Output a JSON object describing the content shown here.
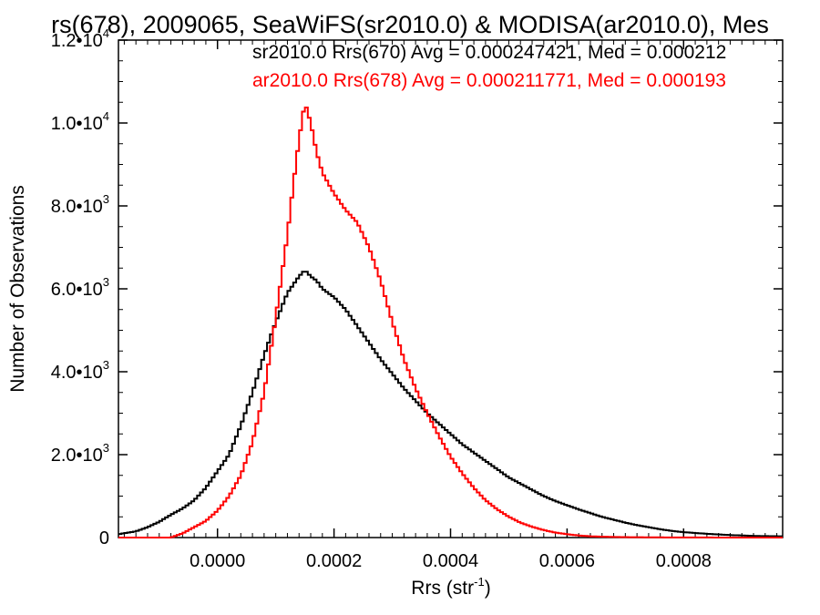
{
  "chart_data": {
    "type": "histogram",
    "title": "rs(678), 2009065, SeaWiFS(sr2010.0) & MODISA(ar2010.0), Mes",
    "xlabel": "Rrs (str",
    "xlabel_sup": "-1",
    "xlabel_close": ")",
    "ylabel": "Number of Observations",
    "xlim": [
      -0.00017,
      0.00097
    ],
    "ylim": [
      0,
      12000
    ],
    "x_ticks": [
      {
        "value": 0.0,
        "label": "0.0000"
      },
      {
        "value": 0.0002,
        "label": "0.0002"
      },
      {
        "value": 0.0004,
        "label": "0.0004"
      },
      {
        "value": 0.0006,
        "label": "0.0006"
      },
      {
        "value": 0.0008,
        "label": "0.0008"
      }
    ],
    "y_ticks": [
      {
        "value": 0,
        "label": "0",
        "exp": ""
      },
      {
        "value": 2000,
        "label": "2.0•10",
        "exp": "3"
      },
      {
        "value": 4000,
        "label": "4.0•10",
        "exp": "3"
      },
      {
        "value": 6000,
        "label": "6.0•10",
        "exp": "3"
      },
      {
        "value": 8000,
        "label": "8.0•10",
        "exp": "3"
      },
      {
        "value": 10000,
        "label": "1.0•10",
        "exp": "4"
      },
      {
        "value": 12000,
        "label": "1.2•10",
        "exp": "4"
      }
    ],
    "legend_position": "top-right",
    "grid": false,
    "series": [
      {
        "name": "sr2010.0 Rrs(670) Avg = 0.000247421, Med = 0.000212",
        "color": "#000000",
        "points": [
          [
            -0.00017,
            80
          ],
          [
            -0.00014,
            150
          ],
          [
            -0.00012,
            250
          ],
          [
            -0.0001,
            380
          ],
          [
            -8e-05,
            550
          ],
          [
            -6e-05,
            700
          ],
          [
            -4e-05,
            900
          ],
          [
            -2e-05,
            1200
          ],
          [
            0.0,
            1600
          ],
          [
            2e-05,
            2000
          ],
          [
            4e-05,
            2700
          ],
          [
            6e-05,
            3500
          ],
          [
            8e-05,
            4400
          ],
          [
            0.0001,
            5200
          ],
          [
            0.00012,
            5900
          ],
          [
            0.00014,
            6300
          ],
          [
            0.00015,
            6450
          ],
          [
            0.00016,
            6300
          ],
          [
            0.00017,
            6200
          ],
          [
            0.00018,
            6000
          ],
          [
            0.0002,
            5800
          ],
          [
            0.00022,
            5500
          ],
          [
            0.00024,
            5100
          ],
          [
            0.00026,
            4700
          ],
          [
            0.00028,
            4300
          ],
          [
            0.0003,
            3950
          ],
          [
            0.00032,
            3600
          ],
          [
            0.00034,
            3300
          ],
          [
            0.00036,
            3000
          ],
          [
            0.00038,
            2750
          ],
          [
            0.0004,
            2500
          ],
          [
            0.00042,
            2250
          ],
          [
            0.00044,
            2050
          ],
          [
            0.00046,
            1850
          ],
          [
            0.00048,
            1650
          ],
          [
            0.0005,
            1450
          ],
          [
            0.00052,
            1300
          ],
          [
            0.00054,
            1150
          ],
          [
            0.00056,
            1000
          ],
          [
            0.00058,
            880
          ],
          [
            0.0006,
            780
          ],
          [
            0.00062,
            680
          ],
          [
            0.00064,
            590
          ],
          [
            0.00066,
            500
          ],
          [
            0.00068,
            430
          ],
          [
            0.0007,
            360
          ],
          [
            0.00072,
            300
          ],
          [
            0.00074,
            250
          ],
          [
            0.00076,
            200
          ],
          [
            0.00078,
            160
          ],
          [
            0.0008,
            130
          ],
          [
            0.00082,
            110
          ],
          [
            0.00084,
            90
          ],
          [
            0.00086,
            75
          ],
          [
            0.00088,
            60
          ],
          [
            0.0009,
            50
          ],
          [
            0.00092,
            40
          ],
          [
            0.00094,
            35
          ],
          [
            0.00097,
            30
          ]
        ]
      },
      {
        "name": "ar2010.0 Rrs(678) Avg = 0.000211771, Med = 0.000193",
        "color": "#ff0000",
        "points": [
          [
            -0.00017,
            0
          ],
          [
            -8e-05,
            0
          ],
          [
            -6e-05,
            100
          ],
          [
            -4e-05,
            250
          ],
          [
            -2e-05,
            400
          ],
          [
            0.0,
            650
          ],
          [
            2e-05,
            1000
          ],
          [
            4e-05,
            1500
          ],
          [
            6e-05,
            2300
          ],
          [
            8e-05,
            3500
          ],
          [
            0.0001,
            5300
          ],
          [
            0.00012,
            7300
          ],
          [
            0.00013,
            8500
          ],
          [
            0.00014,
            9600
          ],
          [
            0.00015,
            10500
          ],
          [
            0.00016,
            10000
          ],
          [
            0.00017,
            9300
          ],
          [
            0.00018,
            8800
          ],
          [
            0.0002,
            8300
          ],
          [
            0.00022,
            7900
          ],
          [
            0.00024,
            7600
          ],
          [
            0.00026,
            7000
          ],
          [
            0.00028,
            6200
          ],
          [
            0.0003,
            5200
          ],
          [
            0.00032,
            4300
          ],
          [
            0.00034,
            3600
          ],
          [
            0.00036,
            3000
          ],
          [
            0.00038,
            2450
          ],
          [
            0.0004,
            1950
          ],
          [
            0.00042,
            1550
          ],
          [
            0.00044,
            1200
          ],
          [
            0.00046,
            900
          ],
          [
            0.00048,
            680
          ],
          [
            0.0005,
            500
          ],
          [
            0.00052,
            360
          ],
          [
            0.00054,
            260
          ],
          [
            0.00056,
            180
          ],
          [
            0.00058,
            120
          ],
          [
            0.0006,
            80
          ],
          [
            0.00062,
            50
          ],
          [
            0.00064,
            30
          ],
          [
            0.00066,
            20
          ],
          [
            0.0007,
            10
          ],
          [
            0.00075,
            5
          ],
          [
            0.0008,
            2
          ],
          [
            0.00097,
            0
          ]
        ]
      }
    ]
  }
}
